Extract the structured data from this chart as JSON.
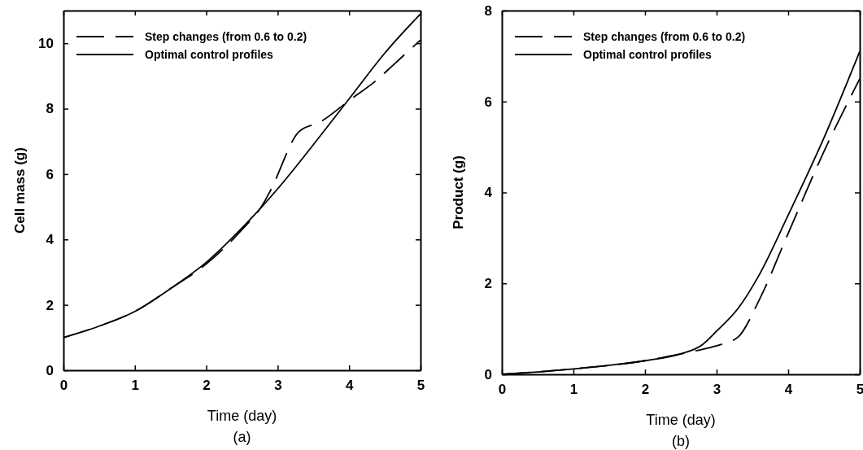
{
  "chart_data": [
    {
      "type": "line",
      "xlabel": "Time (day)",
      "ylabel": "Cell mass (g)",
      "annotations": [
        "(a)"
      ],
      "xlim": [
        0,
        5
      ],
      "ylim": [
        0,
        11
      ],
      "xticks": [
        0,
        1,
        2,
        3,
        4,
        5
      ],
      "yticks": [
        0,
        2,
        4,
        6,
        8,
        10
      ],
      "legend": "top left",
      "grid": false,
      "series": [
        {
          "name": "Step changes (from 0.6 to 0.2)",
          "color": "#000000",
          "line_style": "dashed",
          "x": [
            0,
            0.5,
            1,
            1.5,
            2,
            2.5,
            2.8,
            2.9,
            3.3,
            3.6,
            4,
            4.4,
            4.6,
            5
          ],
          "values": [
            1.0,
            1.35,
            1.8,
            2.5,
            3.25,
            4.3,
            5.1,
            5.5,
            7.3,
            7.6,
            8.25,
            8.9,
            9.3,
            10.1
          ]
        },
        {
          "name": "Optimal control profiles",
          "color": "#000000",
          "line_style": "solid",
          "x": [
            0,
            0.5,
            1,
            1.5,
            2,
            2.5,
            3,
            3.5,
            4,
            4.5,
            5
          ],
          "values": [
            1.0,
            1.35,
            1.8,
            2.5,
            3.3,
            4.35,
            5.55,
            6.9,
            8.3,
            9.7,
            10.9
          ]
        }
      ]
    },
    {
      "type": "line",
      "xlabel": "Time (day)",
      "ylabel": "Product (g)",
      "annotations": [
        "(b)"
      ],
      "xlim": [
        0,
        5
      ],
      "ylim": [
        0,
        8
      ],
      "xticks": [
        0,
        1,
        2,
        3,
        4,
        5
      ],
      "yticks": [
        0,
        2,
        4,
        6,
        8
      ],
      "legend": "top left",
      "grid": false,
      "series": [
        {
          "name": "Step changes (from 0.6 to 0.2)",
          "color": "#000000",
          "line_style": "dashed",
          "x": [
            0,
            1,
            2,
            2.5,
            2.8,
            3.05,
            3.3,
            3.6,
            4,
            4.5,
            5
          ],
          "values": [
            0,
            0.12,
            0.3,
            0.45,
            0.55,
            0.65,
            0.82,
            1.65,
            3.1,
            4.9,
            6.5
          ]
        },
        {
          "name": "Optimal control profiles",
          "color": "#000000",
          "line_style": "solid",
          "x": [
            0,
            0.5,
            1,
            1.5,
            2,
            2.5,
            2.8,
            3,
            3.3,
            3.6,
            4,
            4.5,
            5
          ],
          "values": [
            0,
            0.05,
            0.12,
            0.2,
            0.3,
            0.45,
            0.65,
            0.95,
            1.45,
            2.2,
            3.5,
            5.2,
            7.1
          ]
        }
      ]
    }
  ]
}
